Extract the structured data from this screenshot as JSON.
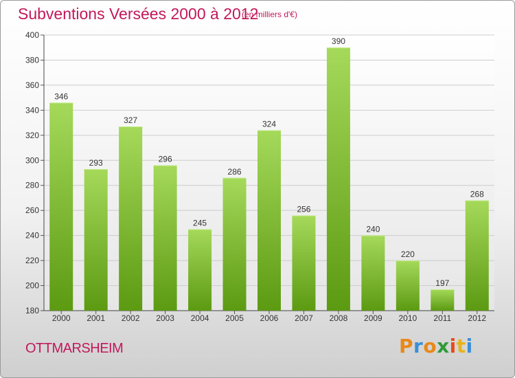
{
  "header": {
    "title": "Subventions Versées 2000 à 2012",
    "subtitle": "(en milliers d'€)"
  },
  "footer": {
    "commune": "OTTMARSHEIM",
    "logo_letters": [
      "P",
      "r",
      "o",
      "x",
      "i",
      "t",
      "i"
    ],
    "logo_colors": [
      "#e8891a",
      "#3b8fd6",
      "#e8891a",
      "#2f9a3a",
      "#e84a1a",
      "#e8b41a",
      "#3b8fd6"
    ]
  },
  "colors": {
    "bar_top": "#a5d95a",
    "bar_bottom": "#5c9a12",
    "title": "#c2185b",
    "grid": "#cccccc"
  },
  "chart_data": {
    "type": "bar",
    "title": "Subventions Versées 2000 à 2012",
    "subtitle": "(en milliers d'€)",
    "xlabel": "",
    "ylabel": "",
    "categories": [
      "2000",
      "2001",
      "2002",
      "2003",
      "2004",
      "2005",
      "2006",
      "2007",
      "2008",
      "2009",
      "2010",
      "2011",
      "2012"
    ],
    "values": [
      346,
      293,
      327,
      296,
      245,
      286,
      324,
      256,
      390,
      240,
      220,
      197,
      268
    ],
    "ylim": [
      180,
      400
    ],
    "yticks": [
      180,
      200,
      220,
      240,
      260,
      280,
      300,
      320,
      340,
      360,
      380,
      400
    ],
    "grid": true,
    "data_labels": true
  }
}
